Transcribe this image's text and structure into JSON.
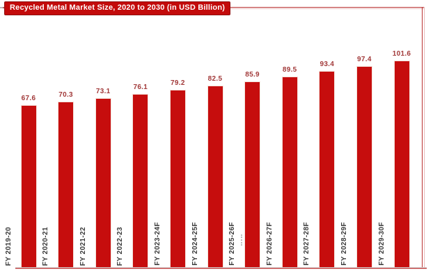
{
  "chart_data": {
    "type": "bar",
    "title": "Recycled Metal Market Size, 2020 to 2030 (in USD Billion)",
    "categories": [
      "FY 2019-20",
      "FY 2020-21",
      "FY 2021-22",
      "FY 2022-23",
      "FY 2023-24F",
      "FY 2024-25F",
      "FY 2025-26F",
      "FY 2026-27F",
      "FY 2027-28F",
      "FY 2028-29F",
      "FY 2029-30F"
    ],
    "values": [
      67.6,
      70.3,
      73.1,
      76.1,
      79.2,
      82.5,
      85.9,
      89.5,
      93.4,
      97.4,
      101.6
    ],
    "xlabel": "",
    "ylabel": "",
    "grid": false,
    "legend": false,
    "y_axis_visible": false,
    "data_labels": true,
    "category_labels_rotated_90": true
  },
  "colors": {
    "bar": "#c60d0d",
    "bar_edge": "#f3e2da",
    "value_label": "#a23a3a",
    "category_label": "#3b3b3b",
    "frame": "#b93030",
    "frame_light": "#e8b9b9",
    "title_bg": "#c30b0b",
    "title_border": "#8f1010",
    "title_text": "#ffffff"
  }
}
